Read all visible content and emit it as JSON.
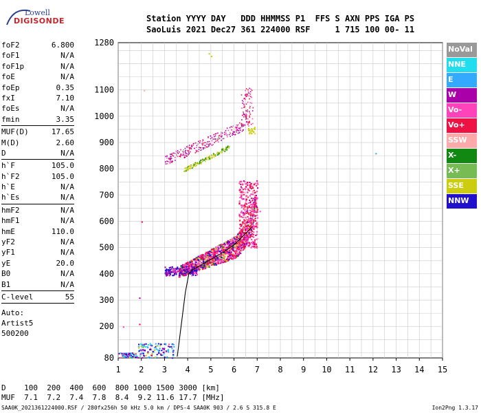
{
  "logo": {
    "line1": "Lowell",
    "line2": "DIGISONDE"
  },
  "header": {
    "line1": "Station YYYY DAY   DDD HHMMSS P1  FFS S AXN PPS IGA PS",
    "line2": "SaoLuis 2021 Dec27 361 224000 RSF     1 715 100 00- 11"
  },
  "params": {
    "g1": [
      {
        "name": "foF2",
        "value": "6.800"
      },
      {
        "name": "foF1",
        "value": "N/A"
      },
      {
        "name": "foF1p",
        "value": "N/A"
      },
      {
        "name": "foE",
        "value": "N/A"
      },
      {
        "name": "foEp",
        "value": "0.35"
      },
      {
        "name": "fxI",
        "value": "7.10"
      },
      {
        "name": "foEs",
        "value": "N/A"
      },
      {
        "name": "fmin",
        "value": "3.35"
      }
    ],
    "g2": [
      {
        "name": "MUF(D)",
        "value": "17.65"
      },
      {
        "name": "M(D)",
        "value": "2.60"
      },
      {
        "name": "D",
        "value": "N/A"
      }
    ],
    "g3": [
      {
        "name": "h`F",
        "value": "105.0"
      },
      {
        "name": "h`F2",
        "value": "105.0"
      },
      {
        "name": "h`E",
        "value": "N/A"
      },
      {
        "name": "h`Es",
        "value": "N/A"
      }
    ],
    "g4": [
      {
        "name": "hmF2",
        "value": "N/A"
      },
      {
        "name": "hmF1",
        "value": "N/A"
      },
      {
        "name": "hmE",
        "value": "110.0"
      },
      {
        "name": "yF2",
        "value": "N/A"
      },
      {
        "name": "yF1",
        "value": "N/A"
      },
      {
        "name": "yE",
        "value": "20.0"
      },
      {
        "name": "B0",
        "value": "N/A"
      },
      {
        "name": "B1",
        "value": "N/A"
      }
    ],
    "g5": [
      {
        "name": "C-level",
        "value": "55"
      }
    ],
    "auto": [
      "Auto:",
      "Artist5",
      "500200"
    ]
  },
  "legend": [
    {
      "label": "NoVal",
      "color": "#999999"
    },
    {
      "label": "NNE",
      "color": "#22ddee"
    },
    {
      "label": "E",
      "color": "#33aaff"
    },
    {
      "label": "W",
      "color": "#aa00aa"
    },
    {
      "label": "Vo-",
      "color": "#ff44bb"
    },
    {
      "label": "Vo+",
      "color": "#ee1144"
    },
    {
      "label": "SSW",
      "color": "#ffaaaa"
    },
    {
      "label": "X-",
      "color": "#118811"
    },
    {
      "label": "X+",
      "color": "#77bb55"
    },
    {
      "label": "SSE",
      "color": "#cccc11"
    },
    {
      "label": "NNW",
      "color": "#2211cc"
    }
  ],
  "muf_table": {
    "d_row": "D    100  200  400  600  800 1000 1500 3000 [km]",
    "muf_row": "MUF  7.1  7.2  7.4  7.8  8.4  9.2 11.6 17.7 [MHz]"
  },
  "footer": {
    "left": "SAA0K_2021361224000.RSF / 280fx256h 50 kHz 5.0 km / DPS-4 SAA0K 903 / 2.6 S 315.8 E",
    "right": "Ion2Png 1.3.17"
  },
  "chart_data": {
    "type": "scatter",
    "xlim": [
      1,
      15
    ],
    "ylim": [
      80,
      1280
    ],
    "xticks": [
      1,
      2,
      3,
      4,
      5,
      6,
      7,
      8,
      9,
      10,
      11,
      12,
      13,
      14,
      15
    ],
    "yticks": [
      80,
      200,
      300,
      400,
      500,
      600,
      700,
      800,
      900,
      1000,
      1100,
      1280
    ],
    "xlabel": "",
    "ylabel": "",
    "grid": true,
    "echo_clusters": [
      {
        "fx": [
          3.6,
          7.0
        ],
        "hy": [
          380,
          760
        ],
        "desc": "F-layer main trace"
      },
      {
        "fx": [
          3.0,
          6.4
        ],
        "hy": [
          800,
          990
        ],
        "desc": "2nd hop trace"
      },
      {
        "fx": [
          6.3,
          7.0
        ],
        "hy": [
          900,
          1120
        ],
        "desc": "2nd hop cusp"
      },
      {
        "fx": [
          1.0,
          3.4
        ],
        "hy": [
          80,
          130
        ],
        "desc": "low echoes"
      }
    ],
    "profile": {
      "x": [
        3.55,
        3.9,
        4.05,
        4.2,
        4.5,
        5.0,
        5.5,
        6.0,
        6.4,
        6.8
      ],
      "y": [
        85,
        330,
        400,
        415,
        430,
        455,
        480,
        510,
        545,
        580
      ]
    }
  }
}
